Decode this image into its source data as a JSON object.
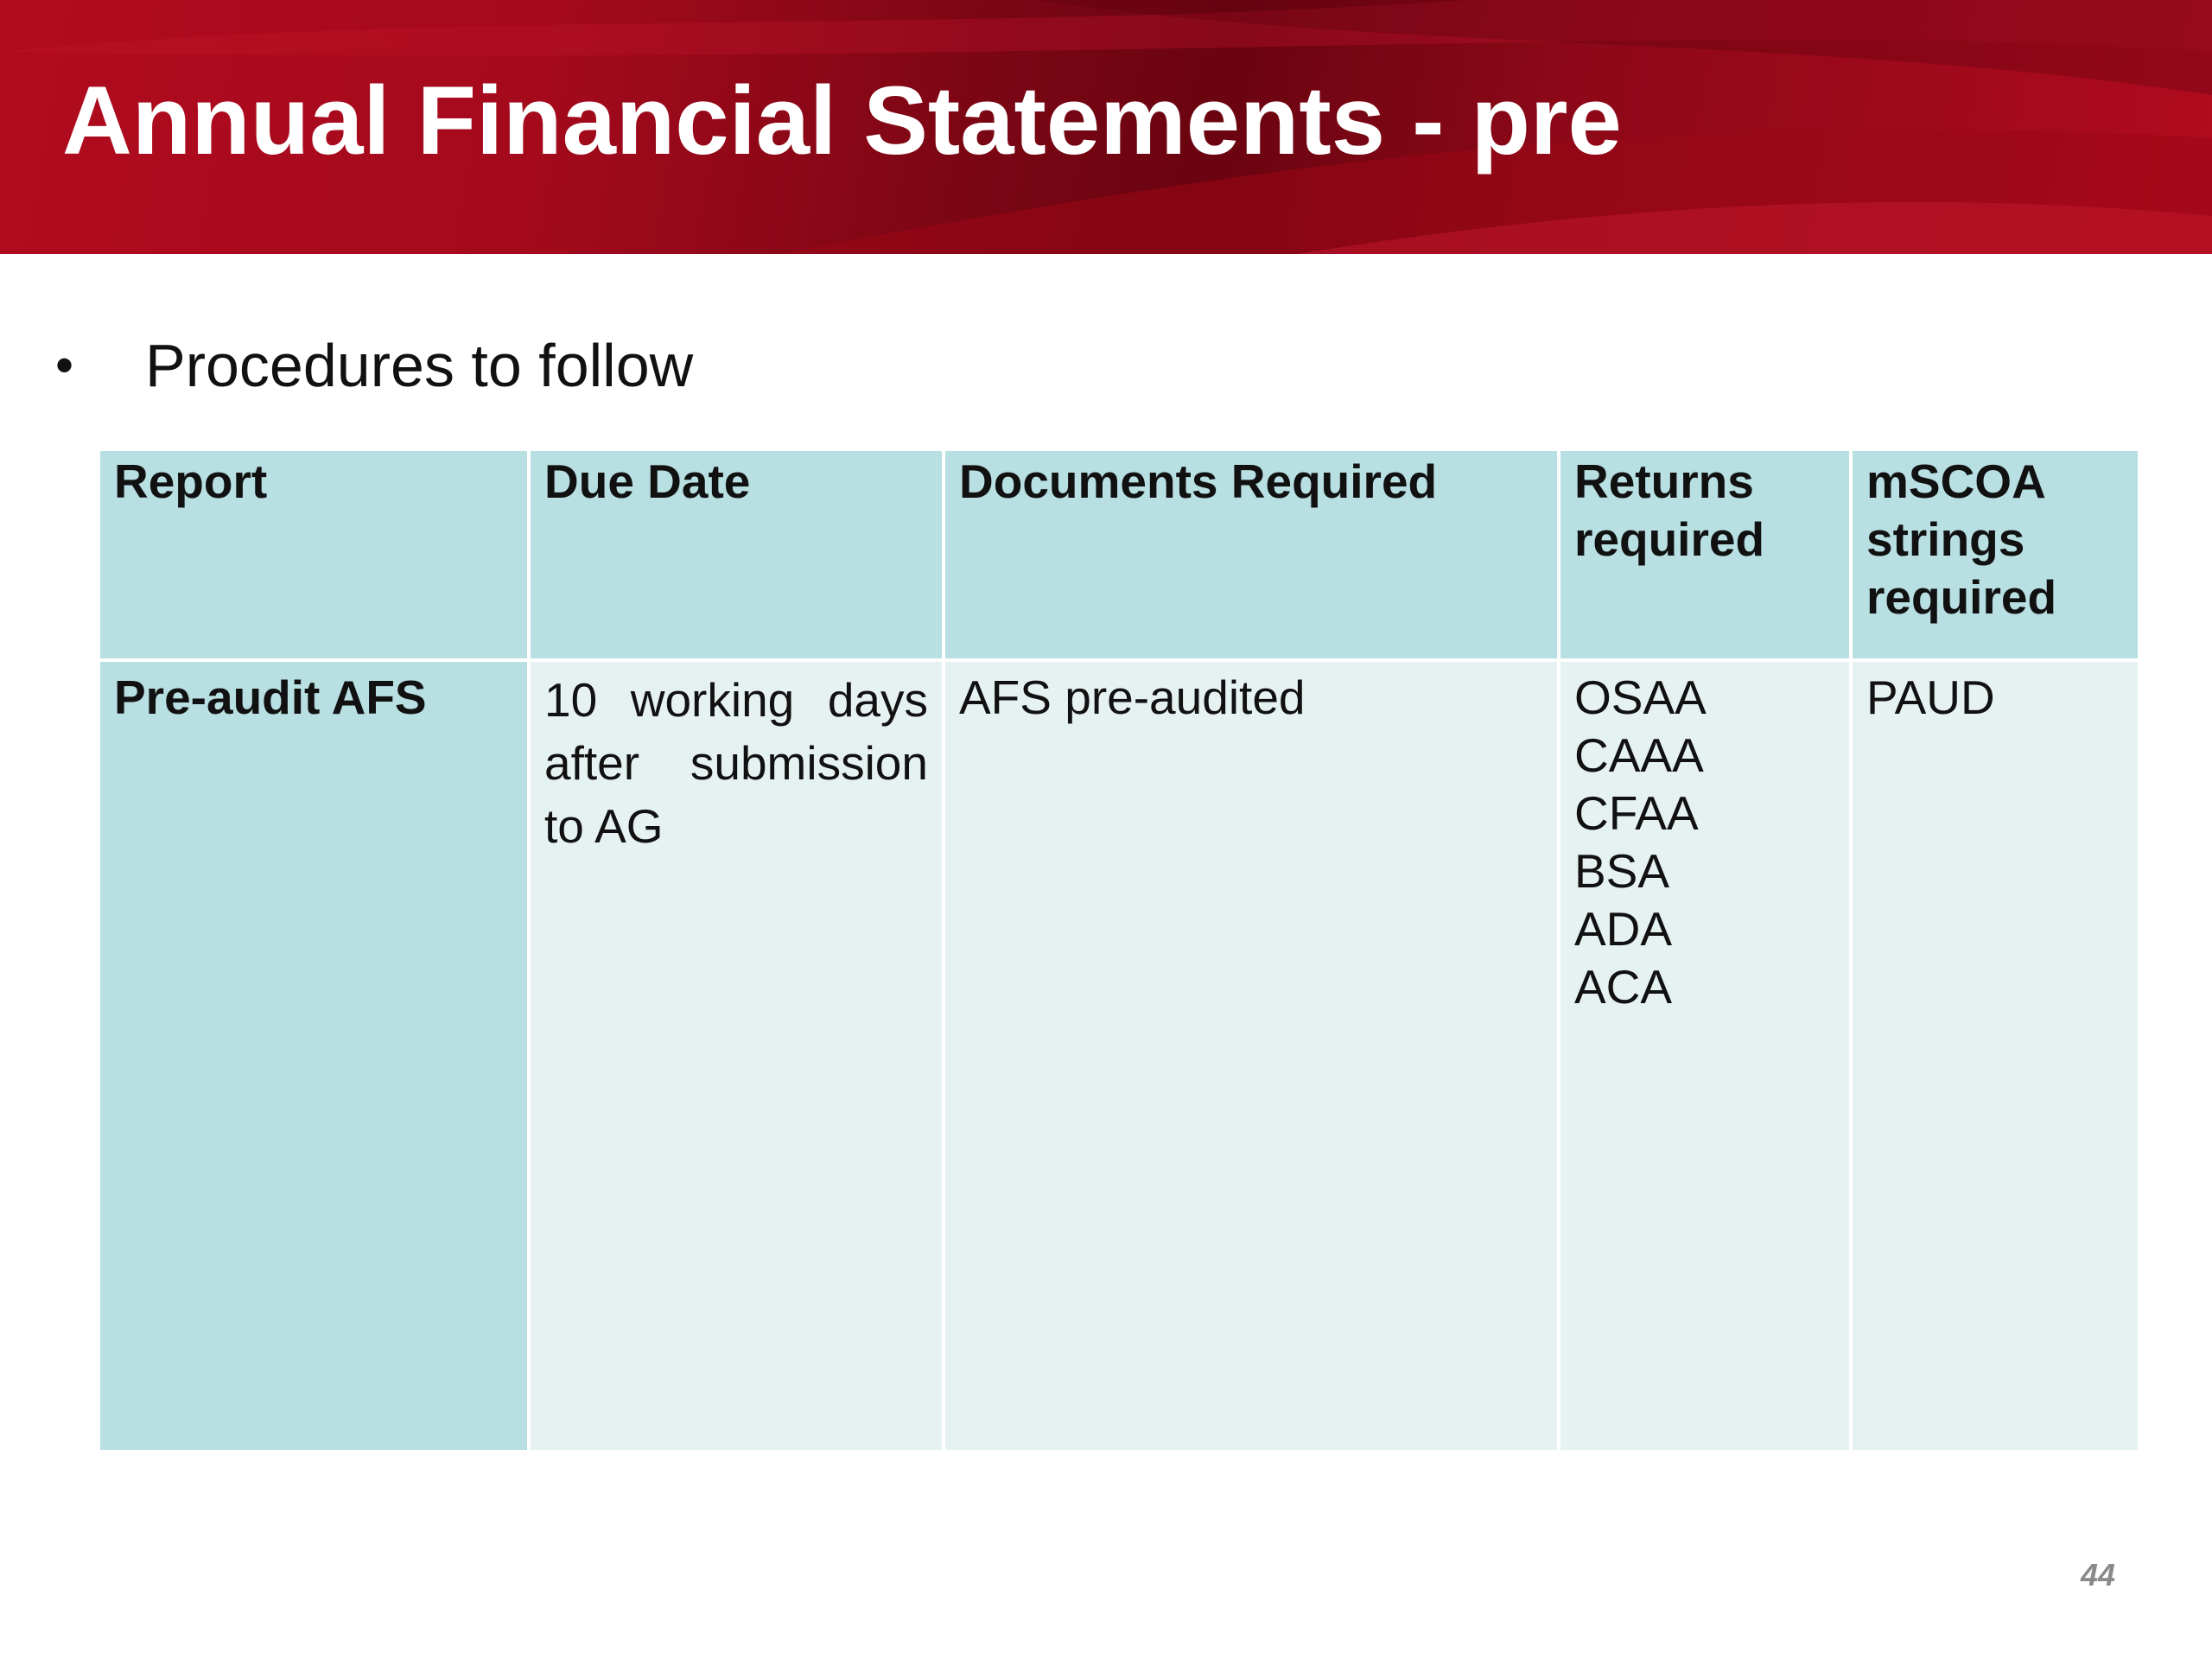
{
  "slide": {
    "title": "Annual Financial Statements - pre",
    "bullet": "Procedures to follow",
    "page_number": "44"
  },
  "table": {
    "headers": [
      "Report",
      "Due Date",
      "Documents Required",
      "Returns required",
      "mSCOA strings required"
    ],
    "row": {
      "report": "Pre-audit AFS",
      "due_date": "10 working days after submission to AG",
      "documents": "AFS pre-audited",
      "returns": [
        "OSAA",
        "CAAA",
        "CFAA",
        "BSA",
        "ADA",
        "ACA"
      ],
      "mscoa": "PAUD"
    }
  },
  "colors": {
    "banner_red": "#b10b1f",
    "header_cell": "#b8dfe2",
    "body_cell": "#e6f2f2"
  }
}
